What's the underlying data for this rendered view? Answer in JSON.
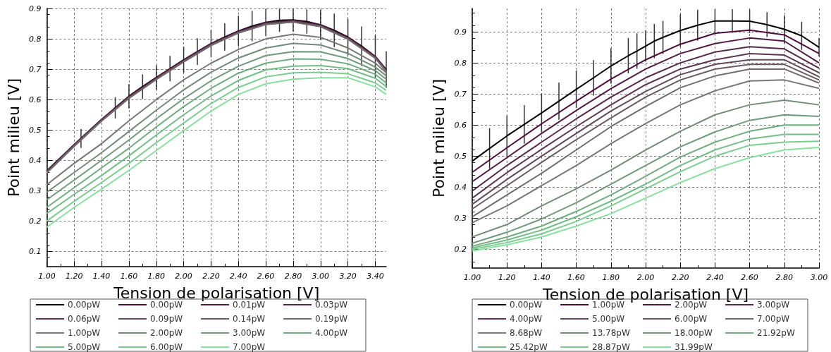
{
  "chart_data": [
    {
      "type": "line",
      "xlabel": "Tension de polarisation [V]",
      "ylabel": "Point milieu [V]",
      "xlim": [
        1.0,
        3.48
      ],
      "ylim": [
        0.05,
        0.9
      ],
      "xticks": [
        {
          "value": 1.0,
          "label": "1.00"
        },
        {
          "value": 1.2,
          "label": "1.20"
        },
        {
          "value": 1.4,
          "label": "1.40"
        },
        {
          "value": 1.6,
          "label": "1.60"
        },
        {
          "value": 1.8,
          "label": "1.80"
        },
        {
          "value": 2.0,
          "label": "2.00"
        },
        {
          "value": 2.2,
          "label": "2.20"
        },
        {
          "value": 2.4,
          "label": "2.40"
        },
        {
          "value": 2.6,
          "label": "2.60"
        },
        {
          "value": 2.8,
          "label": "2.80"
        },
        {
          "value": 3.0,
          "label": "3.00"
        },
        {
          "value": 3.2,
          "label": "3.20"
        },
        {
          "value": 3.4,
          "label": "3.40"
        }
      ],
      "yticks": [
        0.1,
        0.2,
        0.3,
        0.4,
        0.5,
        0.6,
        0.7,
        0.8,
        0.9
      ],
      "grid": true,
      "legend": "bottom",
      "marker": "none",
      "x": [
        1.0,
        1.2,
        1.4,
        1.6,
        1.8,
        2.0,
        2.2,
        2.4,
        2.6,
        2.8,
        3.0,
        3.2,
        3.4,
        3.48
      ],
      "series": [
        {
          "name": "0.00pW",
          "color": "#000000",
          "x": [
            1.0,
            1.25,
            1.5,
            1.6,
            1.7,
            1.8,
            1.9,
            2.0,
            2.1,
            2.2,
            2.3,
            2.4,
            2.5,
            2.6,
            2.7,
            2.8,
            2.9,
            3.0,
            3.1,
            3.2,
            3.3,
            3.4,
            3.48
          ],
          "values": [
            0.366,
            0.472,
            0.573,
            0.611,
            0.643,
            0.673,
            0.702,
            0.731,
            0.758,
            0.784,
            0.806,
            0.826,
            0.842,
            0.854,
            0.861,
            0.862,
            0.857,
            0.846,
            0.828,
            0.806,
            0.776,
            0.742,
            0.699
          ],
          "errors": [
            null,
            0.031,
            0.035,
            0.04,
            0.04,
            0.04,
            0.042,
            0.043,
            0.044,
            0.045,
            0.045,
            0.05,
            0.05,
            0.045,
            0.038,
            0.038,
            0.04,
            0.05,
            0.055,
            0.06,
            0.065,
            0.07,
            0.06
          ]
        },
        {
          "name": "0.00pW",
          "color": "#4d0d3d",
          "values": [
            0.365,
            0.452,
            0.535,
            0.61,
            0.672,
            0.73,
            0.784,
            0.825,
            0.853,
            0.861,
            0.846,
            0.805,
            0.742,
            0.698
          ]
        },
        {
          "name": "0.01pW",
          "color": "#511a43",
          "values": [
            0.364,
            0.451,
            0.534,
            0.609,
            0.671,
            0.729,
            0.783,
            0.824,
            0.852,
            0.86,
            0.845,
            0.804,
            0.741,
            0.697
          ]
        },
        {
          "name": "0.03pW",
          "color": "#562849",
          "values": [
            0.363,
            0.45,
            0.533,
            0.608,
            0.67,
            0.728,
            0.782,
            0.823,
            0.851,
            0.859,
            0.844,
            0.803,
            0.74,
            0.696
          ]
        },
        {
          "name": "0.06pW",
          "color": "#5c3650",
          "values": [
            0.362,
            0.449,
            0.532,
            0.607,
            0.669,
            0.727,
            0.781,
            0.822,
            0.85,
            0.858,
            0.843,
            0.802,
            0.739,
            0.695
          ]
        },
        {
          "name": "0.09pW",
          "color": "#634958",
          "values": [
            0.361,
            0.448,
            0.531,
            0.606,
            0.668,
            0.726,
            0.78,
            0.821,
            0.849,
            0.857,
            0.842,
            0.801,
            0.738,
            0.694
          ]
        },
        {
          "name": "0.14pW",
          "color": "#6a5a60",
          "values": [
            0.36,
            0.447,
            0.53,
            0.605,
            0.667,
            0.725,
            0.779,
            0.82,
            0.848,
            0.856,
            0.841,
            0.8,
            0.737,
            0.693
          ]
        },
        {
          "name": "0.19pW",
          "color": "#716c6c",
          "values": [
            0.359,
            0.446,
            0.529,
            0.604,
            0.666,
            0.724,
            0.778,
            0.819,
            0.847,
            0.855,
            0.84,
            0.799,
            0.736,
            0.692
          ]
        },
        {
          "name": "1.00pW",
          "color": "#787878",
          "values": [
            0.32,
            0.39,
            0.455,
            0.53,
            0.6,
            0.665,
            0.72,
            0.765,
            0.8,
            0.815,
            0.805,
            0.77,
            0.72,
            0.688
          ]
        },
        {
          "name": "2.00pW",
          "color": "#728a78",
          "values": [
            0.295,
            0.36,
            0.425,
            0.495,
            0.565,
            0.632,
            0.69,
            0.737,
            0.77,
            0.785,
            0.78,
            0.752,
            0.707,
            0.678
          ]
        },
        {
          "name": "3.00pW",
          "color": "#6e9a7a",
          "values": [
            0.27,
            0.335,
            0.4,
            0.467,
            0.537,
            0.603,
            0.662,
            0.71,
            0.745,
            0.758,
            0.757,
            0.735,
            0.695,
            0.667
          ]
        },
        {
          "name": "4.00pW",
          "color": "#6fac7e",
          "values": [
            0.245,
            0.31,
            0.375,
            0.44,
            0.51,
            0.577,
            0.637,
            0.687,
            0.72,
            0.734,
            0.733,
            0.718,
            0.683,
            0.655
          ]
        },
        {
          "name": "5.00pW",
          "color": "#72bd86",
          "values": [
            0.225,
            0.288,
            0.35,
            0.415,
            0.483,
            0.55,
            0.612,
            0.663,
            0.698,
            0.71,
            0.712,
            0.702,
            0.67,
            0.643
          ]
        },
        {
          "name": "6.00pW",
          "color": "#7acd8e",
          "values": [
            0.2,
            0.265,
            0.327,
            0.39,
            0.458,
            0.523,
            0.587,
            0.64,
            0.675,
            0.688,
            0.69,
            0.685,
            0.655,
            0.63
          ]
        },
        {
          "name": "7.00pW",
          "color": "#88e09e",
          "values": [
            0.18,
            0.245,
            0.305,
            0.367,
            0.432,
            0.498,
            0.562,
            0.617,
            0.652,
            0.667,
            0.672,
            0.672,
            0.642,
            0.617
          ]
        }
      ]
    },
    {
      "type": "line",
      "xlabel": "Tension de polarisation [V]",
      "ylabel": "Point milieu [V]",
      "xlim": [
        1.0,
        3.0
      ],
      "ylim": [
        0.14,
        0.975
      ],
      "xticks": [
        {
          "value": 1.0,
          "label": "1.00"
        },
        {
          "value": 1.2,
          "label": "1.20"
        },
        {
          "value": 1.4,
          "label": "1.40"
        },
        {
          "value": 1.6,
          "label": "1.60"
        },
        {
          "value": 1.8,
          "label": "1.80"
        },
        {
          "value": 2.0,
          "label": "2.00"
        },
        {
          "value": 2.2,
          "label": "2.20"
        },
        {
          "value": 2.4,
          "label": "2.40"
        },
        {
          "value": 2.6,
          "label": "2.60"
        },
        {
          "value": 2.8,
          "label": "2.80"
        },
        {
          "value": 3.0,
          "label": "3.00"
        }
      ],
      "yticks": [
        0.2,
        0.3,
        0.4,
        0.5,
        0.6,
        0.7,
        0.8,
        0.9
      ],
      "grid": true,
      "legend": "bottom",
      "marker": "none",
      "x": [
        1.0,
        1.2,
        1.4,
        1.6,
        1.8,
        2.0,
        2.2,
        2.4,
        2.6,
        2.8,
        3.0
      ],
      "series": [
        {
          "name": "0.00pW",
          "color": "#000000",
          "x": [
            1.0,
            1.1,
            1.2,
            1.3,
            1.4,
            1.5,
            1.6,
            1.7,
            1.8,
            1.9,
            1.95,
            2.0,
            2.05,
            2.1,
            2.2,
            2.3,
            2.4,
            2.5,
            2.6,
            2.7,
            2.8,
            2.9,
            3.0
          ],
          "values": [
            0.484,
            0.525,
            0.565,
            0.602,
            0.639,
            0.677,
            0.715,
            0.752,
            0.79,
            0.823,
            0.838,
            0.854,
            0.87,
            0.882,
            0.904,
            0.921,
            0.935,
            0.935,
            0.934,
            0.923,
            0.908,
            0.887,
            0.85
          ],
          "errors": [
            null,
            0.065,
            0.065,
            0.062,
            0.062,
            0.06,
            0.06,
            0.057,
            0.057,
            0.057,
            0.057,
            0.05,
            0.055,
            0.053,
            0.052,
            0.05,
            0.038,
            0.038,
            0.038,
            0.04,
            0.045,
            0.045,
            0.03
          ]
        },
        {
          "name": "1.00pW",
          "color": "#4d0d3d",
          "values": [
            0.448,
            0.527,
            0.604,
            0.677,
            0.748,
            0.81,
            0.86,
            0.895,
            0.905,
            0.89,
            0.83
          ]
        },
        {
          "name": "2.00pW",
          "color": "#511a43",
          "values": [
            0.418,
            0.495,
            0.573,
            0.647,
            0.717,
            0.78,
            0.83,
            0.862,
            0.88,
            0.87,
            0.8
          ]
        },
        {
          "name": "3.00pW",
          "color": "#562849",
          "values": [
            0.388,
            0.47,
            0.545,
            0.62,
            0.69,
            0.752,
            0.8,
            0.835,
            0.852,
            0.845,
            0.783
          ]
        },
        {
          "name": "4.00pW",
          "color": "#5c3650",
          "values": [
            0.365,
            0.447,
            0.522,
            0.595,
            0.665,
            0.73,
            0.78,
            0.81,
            0.83,
            0.825,
            0.768
          ]
        },
        {
          "name": "5.00pW",
          "color": "#634958",
          "values": [
            0.345,
            0.425,
            0.5,
            0.573,
            0.645,
            0.708,
            0.762,
            0.795,
            0.81,
            0.81,
            0.755
          ]
        },
        {
          "name": "6.00pW",
          "color": "#6a5a60",
          "values": [
            0.33,
            0.405,
            0.48,
            0.553,
            0.623,
            0.69,
            0.745,
            0.78,
            0.795,
            0.795,
            0.745
          ]
        },
        {
          "name": "7.00pW",
          "color": "#716c6c",
          "values": [
            0.305,
            0.375,
            0.445,
            0.52,
            0.595,
            0.66,
            0.72,
            0.758,
            0.78,
            0.78,
            0.735
          ]
        },
        {
          "name": "8.68pW",
          "color": "#787878",
          "values": [
            0.286,
            0.34,
            0.405,
            0.47,
            0.54,
            0.605,
            0.665,
            0.71,
            0.742,
            0.745,
            0.718
          ]
        },
        {
          "name": "13.78pW",
          "color": "#728a78",
          "values": [
            0.24,
            0.28,
            0.34,
            0.395,
            0.455,
            0.52,
            0.58,
            0.633,
            0.665,
            0.68,
            0.665
          ]
        },
        {
          "name": "18.00pW",
          "color": "#6e9a7a",
          "values": [
            0.22,
            0.255,
            0.298,
            0.35,
            0.41,
            0.47,
            0.53,
            0.578,
            0.615,
            0.633,
            0.628
          ]
        },
        {
          "name": "21.92pW",
          "color": "#6fac7e",
          "values": [
            0.21,
            0.24,
            0.275,
            0.322,
            0.375,
            0.435,
            0.497,
            0.545,
            0.58,
            0.6,
            0.6
          ]
        },
        {
          "name": "25.42pW",
          "color": "#72bd86",
          "values": [
            0.205,
            0.23,
            0.262,
            0.305,
            0.355,
            0.41,
            0.47,
            0.52,
            0.555,
            0.57,
            0.57
          ]
        },
        {
          "name": "28.87pW",
          "color": "#7acd8e",
          "values": [
            0.2,
            0.222,
            0.25,
            0.29,
            0.34,
            0.395,
            0.45,
            0.5,
            0.535,
            0.545,
            0.548
          ]
        },
        {
          "name": "31.99pW",
          "color": "#88e09e",
          "values": [
            0.195,
            0.215,
            0.24,
            0.275,
            0.315,
            0.365,
            0.415,
            0.46,
            0.495,
            0.52,
            0.528
          ]
        }
      ]
    }
  ]
}
